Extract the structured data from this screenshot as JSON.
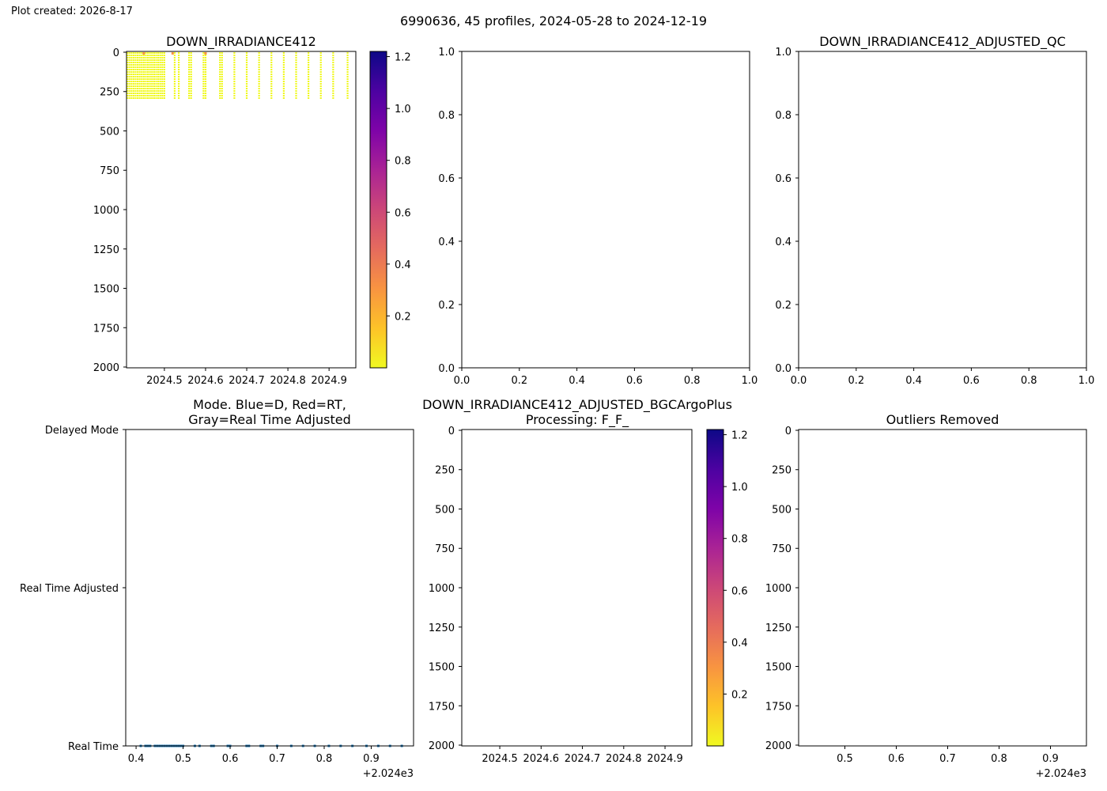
{
  "header": {
    "created": "Plot created: 2026-8-17",
    "suptitle": "6990636, 45 profiles, 2024-05-28 to 2024-12-19"
  },
  "colorbar": {
    "colormap": "plasma_r",
    "ticks": [
      "0.2",
      "0.4",
      "0.6",
      "0.8",
      "1.0",
      "1.2"
    ],
    "tick_values": [
      0.2,
      0.4,
      0.6,
      0.8,
      1.0,
      1.2
    ],
    "range": [
      0.0,
      1.22
    ]
  },
  "chart_data": [
    {
      "id": "p1",
      "type": "scatter",
      "title": "DOWN_IRRADIANCE412",
      "xticks": [
        "2024.5",
        "2024.6",
        "2024.7",
        "2024.8",
        "2024.9"
      ],
      "xtick_values": [
        2024.5,
        2024.6,
        2024.7,
        2024.8,
        2024.9
      ],
      "xlim": [
        2024.408,
        2024.965
      ],
      "yticks": [
        "0",
        "250",
        "500",
        "750",
        "1000",
        "1250",
        "1500",
        "1750",
        "2000"
      ],
      "ylim": [
        2005,
        -5
      ],
      "profile_times": [
        2024.41,
        2024.415,
        2024.42,
        2024.425,
        2024.43,
        2024.435,
        2024.44,
        2024.445,
        2024.45,
        2024.455,
        2024.46,
        2024.465,
        2024.47,
        2024.475,
        2024.48,
        2024.485,
        2024.49,
        2024.495,
        2024.5,
        2024.525,
        2024.535,
        2024.56,
        2024.565,
        2024.595,
        2024.6,
        2024.635,
        2024.64,
        2024.67,
        2024.7,
        2024.73,
        2024.76,
        2024.79,
        2024.82,
        2024.85,
        2024.88,
        2024.91,
        2024.945
      ],
      "max_depth": 300,
      "point_value": 0.02,
      "colorbar": true
    },
    {
      "id": "p2",
      "type": "scatter",
      "title": "",
      "xticks": [
        "0.0",
        "0.2",
        "0.4",
        "0.6",
        "0.8",
        "1.0"
      ],
      "xtick_values": [
        0,
        0.2,
        0.4,
        0.6,
        0.8,
        1.0
      ],
      "xlim": [
        0,
        1
      ],
      "yticks": [
        "0.0",
        "0.2",
        "0.4",
        "0.6",
        "0.8",
        "1.0"
      ],
      "ylim": [
        0,
        1
      ],
      "series": []
    },
    {
      "id": "p3",
      "type": "scatter",
      "title": "DOWN_IRRADIANCE412_ADJUSTED_QC",
      "xticks": [
        "0.0",
        "0.2",
        "0.4",
        "0.6",
        "0.8",
        "1.0"
      ],
      "xtick_values": [
        0,
        0.2,
        0.4,
        0.6,
        0.8,
        1.0
      ],
      "xlim": [
        0,
        1
      ],
      "yticks": [
        "0.0",
        "0.2",
        "0.4",
        "0.6",
        "0.8",
        "1.0"
      ],
      "ylim": [
        0,
        1
      ],
      "series": []
    },
    {
      "id": "p4",
      "type": "scatter",
      "title": [
        "Mode. Blue=D, Red=RT,",
        "Gray=Real Time Adjusted"
      ],
      "xticks": [
        "0.4",
        "0.5",
        "0.6",
        "0.7",
        "0.8",
        "0.9"
      ],
      "xtick_values": [
        0.4,
        0.5,
        0.6,
        0.7,
        0.8,
        0.9
      ],
      "xlim": [
        0.378,
        0.99
      ],
      "x_offset_label": "+2.024e3",
      "yticks": [
        "Delayed Mode",
        "Real Time Adjusted",
        "Real Time"
      ],
      "ytick_values": [
        2,
        1,
        0
      ],
      "ylim": [
        0,
        2
      ],
      "mode_values": [
        0.41,
        0.42,
        0.425,
        0.43,
        0.44,
        0.445,
        0.45,
        0.455,
        0.46,
        0.465,
        0.47,
        0.475,
        0.48,
        0.485,
        0.49,
        0.495,
        0.5,
        0.525,
        0.535,
        0.56,
        0.565,
        0.595,
        0.6,
        0.635,
        0.64,
        0.665,
        0.67,
        0.7,
        0.73,
        0.755,
        0.78,
        0.81,
        0.835,
        0.86,
        0.89,
        0.915,
        0.94,
        0.965
      ],
      "mode_level": 0,
      "point_color": "#1f77b4"
    },
    {
      "id": "p5",
      "type": "scatter",
      "title": [
        "DOWN_IRRADIANCE412_ADJUSTED_BGCArgoPlus",
        "Processing: F_F_"
      ],
      "xticks": [
        "2024.5",
        "2024.6",
        "2024.7",
        "2024.8",
        "2024.9"
      ],
      "xtick_values": [
        2024.5,
        2024.6,
        2024.7,
        2024.8,
        2024.9
      ],
      "xlim": [
        2024.408,
        2024.965
      ],
      "yticks": [
        "0",
        "250",
        "500",
        "750",
        "1000",
        "1250",
        "1500",
        "1750",
        "2000"
      ],
      "ylim": [
        2005,
        -5
      ],
      "series": [],
      "colorbar": true
    },
    {
      "id": "p6",
      "type": "scatter",
      "title": "Outliers Removed",
      "xticks": [
        "0.5",
        "0.6",
        "0.7",
        "0.8",
        "0.9"
      ],
      "xtick_values": [
        0.5,
        0.6,
        0.7,
        0.8,
        0.9
      ],
      "xlim": [
        0.41,
        0.97
      ],
      "x_offset_label": "+2.024e3",
      "yticks": [
        "0",
        "250",
        "500",
        "750",
        "1000",
        "1250",
        "1500",
        "1750",
        "2000"
      ],
      "ylim": [
        2005,
        -5
      ],
      "series": []
    }
  ]
}
